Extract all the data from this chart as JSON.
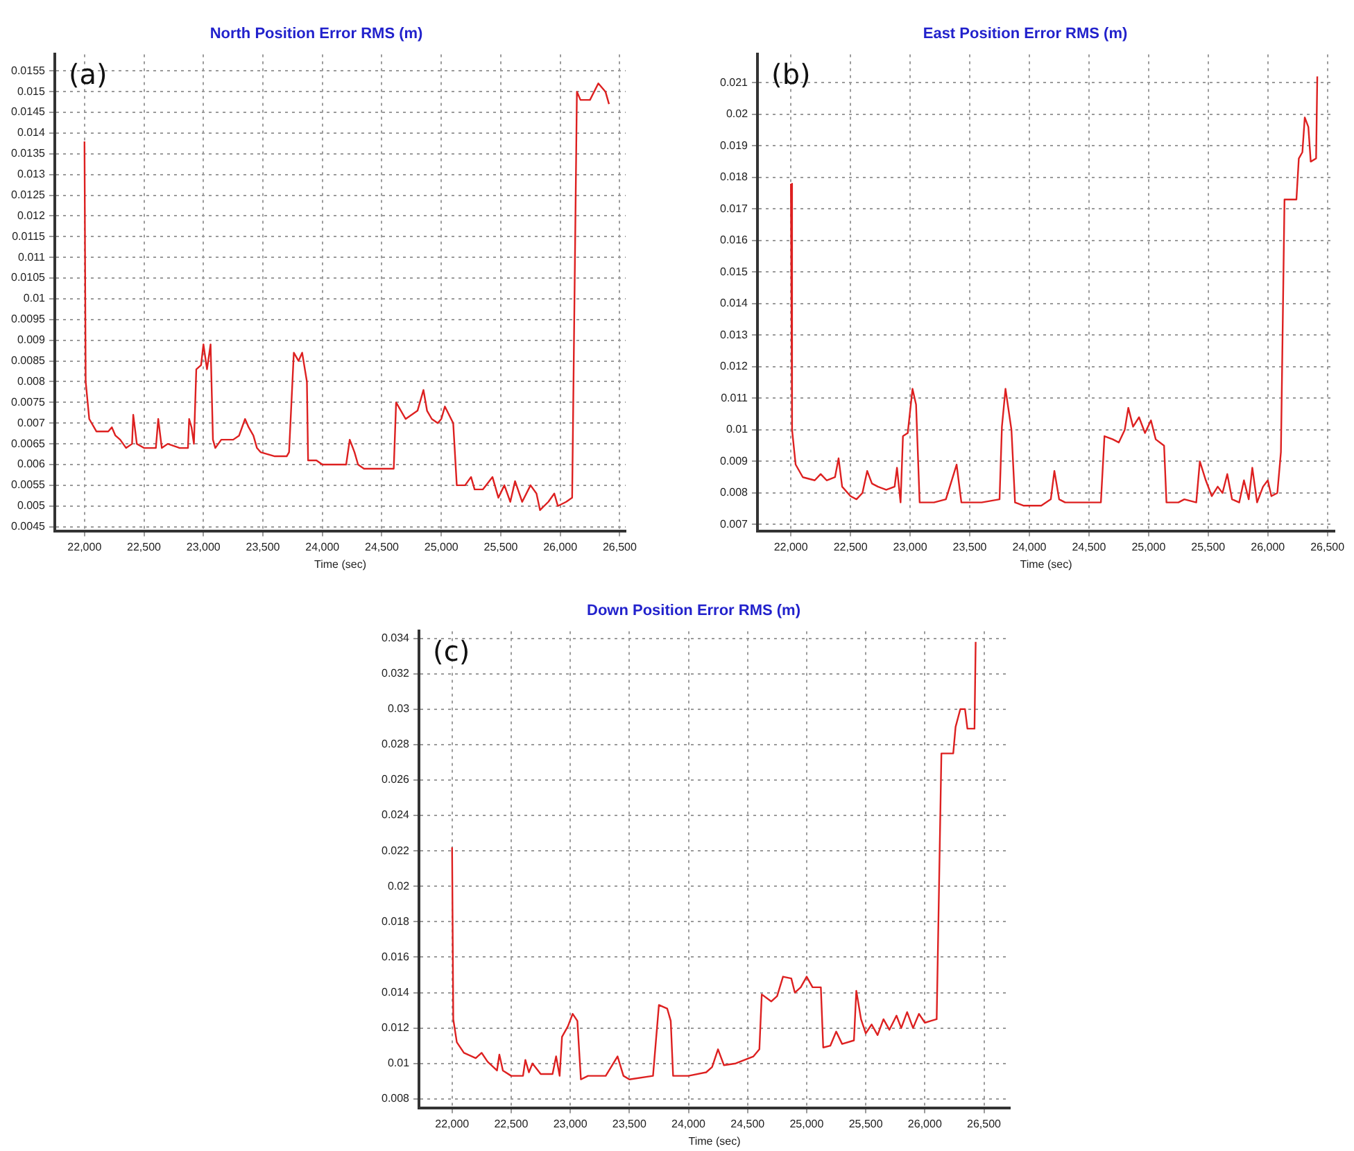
{
  "chart_data": [
    {
      "type": "line",
      "title": "North Position Error RMS (m)",
      "xlabel": "Time (sec)",
      "annotations": [
        "(a)"
      ],
      "grid": true,
      "marker": "none",
      "line_style": "solid",
      "xlim": [
        21750,
        26550
      ],
      "ylim": [
        0.0044,
        0.0159
      ],
      "xticks": [
        {
          "value": 22000,
          "label": "22,000"
        },
        {
          "value": 22500,
          "label": "22,500"
        },
        {
          "value": 23000,
          "label": "23,000"
        },
        {
          "value": 23500,
          "label": "23,500"
        },
        {
          "value": 24000,
          "label": "24,000"
        },
        {
          "value": 24500,
          "label": "24,500"
        },
        {
          "value": 25000,
          "label": "25,000"
        },
        {
          "value": 25500,
          "label": "25,500"
        },
        {
          "value": 26000,
          "label": "26,000"
        },
        {
          "value": 26500,
          "label": "26,500"
        }
      ],
      "yticks": [
        0.0045,
        0.005,
        0.0055,
        0.006,
        0.0065,
        0.007,
        0.0075,
        0.008,
        0.0085,
        0.009,
        0.0095,
        0.01,
        0.0105,
        0.011,
        0.0115,
        0.012,
        0.0125,
        0.013,
        0.0135,
        0.014,
        0.0145,
        0.015,
        0.0155
      ],
      "x": [
        22000,
        22010,
        22040,
        22100,
        22200,
        22230,
        22260,
        22300,
        22350,
        22400,
        22410,
        22440,
        22500,
        22600,
        22620,
        22650,
        22700,
        22800,
        22870,
        22880,
        22900,
        22920,
        22940,
        22980,
        23000,
        23030,
        23060,
        23080,
        23100,
        23150,
        23250,
        23300,
        23350,
        23380,
        23420,
        23450,
        23480,
        23600,
        23700,
        23720,
        23760,
        23800,
        23830,
        23870,
        23880,
        23950,
        24000,
        24200,
        24230,
        24270,
        24300,
        24350,
        24400,
        24600,
        24620,
        24700,
        24800,
        24850,
        24880,
        24920,
        24970,
        25000,
        25030,
        25100,
        25130,
        25200,
        25250,
        25280,
        25350,
        25430,
        25480,
        25530,
        25580,
        25620,
        25680,
        25750,
        25800,
        25830,
        25900,
        25950,
        25980,
        26050,
        26100,
        26140,
        26170,
        26250,
        26320,
        26380,
        26410
      ],
      "series": [
        {
          "color": "#dd2020",
          "values": [
            0.0138,
            0.008,
            0.0071,
            0.0068,
            0.0068,
            0.0069,
            0.0067,
            0.0066,
            0.0064,
            0.0065,
            0.0072,
            0.0065,
            0.0064,
            0.0064,
            0.0071,
            0.0064,
            0.0065,
            0.0064,
            0.0064,
            0.0071,
            0.0069,
            0.0065,
            0.0083,
            0.0084,
            0.0089,
            0.0083,
            0.0089,
            0.0066,
            0.0064,
            0.0066,
            0.0066,
            0.0067,
            0.0071,
            0.0069,
            0.0067,
            0.0064,
            0.0063,
            0.0062,
            0.0062,
            0.0063,
            0.0087,
            0.0085,
            0.0087,
            0.008,
            0.0061,
            0.0061,
            0.006,
            0.006,
            0.0066,
            0.0063,
            0.006,
            0.0059,
            0.0059,
            0.0059,
            0.0075,
            0.0071,
            0.0073,
            0.0078,
            0.0073,
            0.0071,
            0.007,
            0.0071,
            0.0074,
            0.007,
            0.0055,
            0.0055,
            0.0057,
            0.0054,
            0.0054,
            0.0057,
            0.0052,
            0.0055,
            0.0051,
            0.0056,
            0.0051,
            0.0055,
            0.0053,
            0.0049,
            0.0051,
            0.0053,
            0.005,
            0.0051,
            0.0052,
            0.015,
            0.0148,
            0.0148,
            0.0152,
            0.015,
            0.0147
          ]
        }
      ]
    },
    {
      "type": "line",
      "title": "East Position Error RMS (m)",
      "xlabel": "Time (sec)",
      "annotations": [
        "(b)"
      ],
      "grid": true,
      "marker": "none",
      "line_style": "solid",
      "xlim": [
        21720,
        26560
      ],
      "ylim": [
        0.0068,
        0.0219
      ],
      "xticks": [
        {
          "value": 22000,
          "label": "22,000"
        },
        {
          "value": 22500,
          "label": "22,500"
        },
        {
          "value": 23000,
          "label": "23,000"
        },
        {
          "value": 23500,
          "label": "23,500"
        },
        {
          "value": 24000,
          "label": "24,000"
        },
        {
          "value": 24500,
          "label": "24,500"
        },
        {
          "value": 25000,
          "label": "25,000"
        },
        {
          "value": 25500,
          "label": "25,500"
        },
        {
          "value": 26000,
          "label": "26,000"
        },
        {
          "value": 26500,
          "label": "26,500"
        }
      ],
      "yticks": [
        0.007,
        0.008,
        0.009,
        0.01,
        0.011,
        0.012,
        0.013,
        0.014,
        0.015,
        0.016,
        0.017,
        0.018,
        0.019,
        0.02,
        0.021
      ],
      "x": [
        22000,
        22010,
        22040,
        22100,
        22200,
        22250,
        22300,
        22370,
        22400,
        22430,
        22500,
        22550,
        22600,
        22640,
        22680,
        22730,
        22800,
        22870,
        22890,
        22920,
        22940,
        22980,
        23020,
        23050,
        23080,
        23200,
        23300,
        23390,
        23430,
        23600,
        23750,
        23770,
        23800,
        23850,
        23880,
        23950,
        24100,
        24180,
        24210,
        24250,
        24300,
        24600,
        24630,
        24700,
        24750,
        24800,
        24830,
        24870,
        24920,
        24970,
        25020,
        25060,
        25130,
        25150,
        25250,
        25300,
        25400,
        25430,
        25480,
        25530,
        25580,
        25620,
        25660,
        25700,
        25760,
        25800,
        25840,
        25870,
        25910,
        25960,
        26000,
        26030,
        26080,
        26110,
        26140,
        26240,
        26260,
        26290,
        26310,
        26340,
        26360,
        26405,
        26415
      ],
      "series": [
        {
          "color": "#dd2020",
          "values": [
            0.0178,
            0.01,
            0.0089,
            0.0085,
            0.0084,
            0.0086,
            0.0084,
            0.0085,
            0.0091,
            0.0082,
            0.0079,
            0.0078,
            0.008,
            0.0087,
            0.0083,
            0.0082,
            0.0081,
            0.0082,
            0.0088,
            0.0077,
            0.0098,
            0.0099,
            0.0113,
            0.0108,
            0.0077,
            0.0077,
            0.0078,
            0.0089,
            0.0077,
            0.0077,
            0.0078,
            0.0101,
            0.0113,
            0.01,
            0.0077,
            0.0076,
            0.0076,
            0.0078,
            0.0087,
            0.0078,
            0.0077,
            0.0077,
            0.0098,
            0.0097,
            0.0096,
            0.01,
            0.0107,
            0.0101,
            0.0104,
            0.0099,
            0.0103,
            0.0097,
            0.0095,
            0.0077,
            0.0077,
            0.0078,
            0.0077,
            0.009,
            0.0084,
            0.0079,
            0.0082,
            0.008,
            0.0086,
            0.0078,
            0.0077,
            0.0084,
            0.0078,
            0.0088,
            0.0077,
            0.0082,
            0.0084,
            0.0079,
            0.008,
            0.0093,
            0.0173,
            0.0173,
            0.0186,
            0.0188,
            0.0199,
            0.0196,
            0.0185,
            0.0186,
            0.0212
          ]
        }
      ]
    },
    {
      "type": "line",
      "title": "Down Position Error RMS (m)",
      "xlabel": "Time (sec)",
      "annotations": [
        "(c)"
      ],
      "grid": true,
      "marker": "none",
      "line_style": "solid",
      "xlim": [
        21720,
        26720
      ],
      "ylim": [
        0.0075,
        0.0344
      ],
      "xticks": [
        {
          "value": 22000,
          "label": "22,000"
        },
        {
          "value": 22500,
          "label": "22,500"
        },
        {
          "value": 23000,
          "label": "23,000"
        },
        {
          "value": 23500,
          "label": "23,500"
        },
        {
          "value": 24000,
          "label": "24,000"
        },
        {
          "value": 24500,
          "label": "24,500"
        },
        {
          "value": 25000,
          "label": "25,000"
        },
        {
          "value": 25500,
          "label": "25,500"
        },
        {
          "value": 26000,
          "label": "26,000"
        },
        {
          "value": 26500,
          "label": "26,500"
        }
      ],
      "yticks": [
        0.008,
        0.01,
        0.012,
        0.014,
        0.016,
        0.018,
        0.02,
        0.022,
        0.024,
        0.026,
        0.028,
        0.03,
        0.032,
        0.034
      ],
      "x": [
        22000,
        22010,
        22040,
        22100,
        22200,
        22250,
        22300,
        22380,
        22400,
        22430,
        22500,
        22600,
        22620,
        22650,
        22680,
        22750,
        22850,
        22880,
        22910,
        22930,
        22980,
        23020,
        23060,
        23090,
        23150,
        23300,
        23400,
        23450,
        23500,
        23700,
        23750,
        23820,
        23850,
        23870,
        24000,
        24150,
        24200,
        24250,
        24300,
        24400,
        24550,
        24600,
        24620,
        24700,
        24750,
        24800,
        24870,
        24900,
        24950,
        25000,
        25050,
        25120,
        25140,
        25200,
        25250,
        25300,
        25400,
        25420,
        25460,
        25500,
        25550,
        25600,
        25650,
        25700,
        25760,
        25800,
        25850,
        25900,
        25950,
        26000,
        26050,
        26100,
        26140,
        26240,
        26260,
        26300,
        26340,
        26360,
        26420,
        26430
      ],
      "series": [
        {
          "color": "#dd2020",
          "values": [
            0.0222,
            0.0125,
            0.0112,
            0.0106,
            0.0103,
            0.0106,
            0.0101,
            0.0096,
            0.0105,
            0.0096,
            0.0093,
            0.0093,
            0.0102,
            0.0095,
            0.01,
            0.0094,
            0.0094,
            0.0104,
            0.0093,
            0.0115,
            0.0121,
            0.0128,
            0.0124,
            0.0091,
            0.0093,
            0.0093,
            0.0104,
            0.0093,
            0.0091,
            0.0093,
            0.0133,
            0.0131,
            0.0124,
            0.0093,
            0.0093,
            0.0095,
            0.0098,
            0.0108,
            0.0099,
            0.01,
            0.0104,
            0.0108,
            0.0139,
            0.0135,
            0.0138,
            0.0149,
            0.0148,
            0.014,
            0.0143,
            0.0149,
            0.0143,
            0.0143,
            0.0109,
            0.011,
            0.0118,
            0.0111,
            0.0113,
            0.0141,
            0.0125,
            0.0117,
            0.0122,
            0.0116,
            0.0125,
            0.0119,
            0.0127,
            0.012,
            0.0129,
            0.012,
            0.0128,
            0.0123,
            0.0124,
            0.0125,
            0.0275,
            0.0275,
            0.029,
            0.03,
            0.03,
            0.0289,
            0.0289,
            0.0338
          ]
        }
      ]
    }
  ]
}
